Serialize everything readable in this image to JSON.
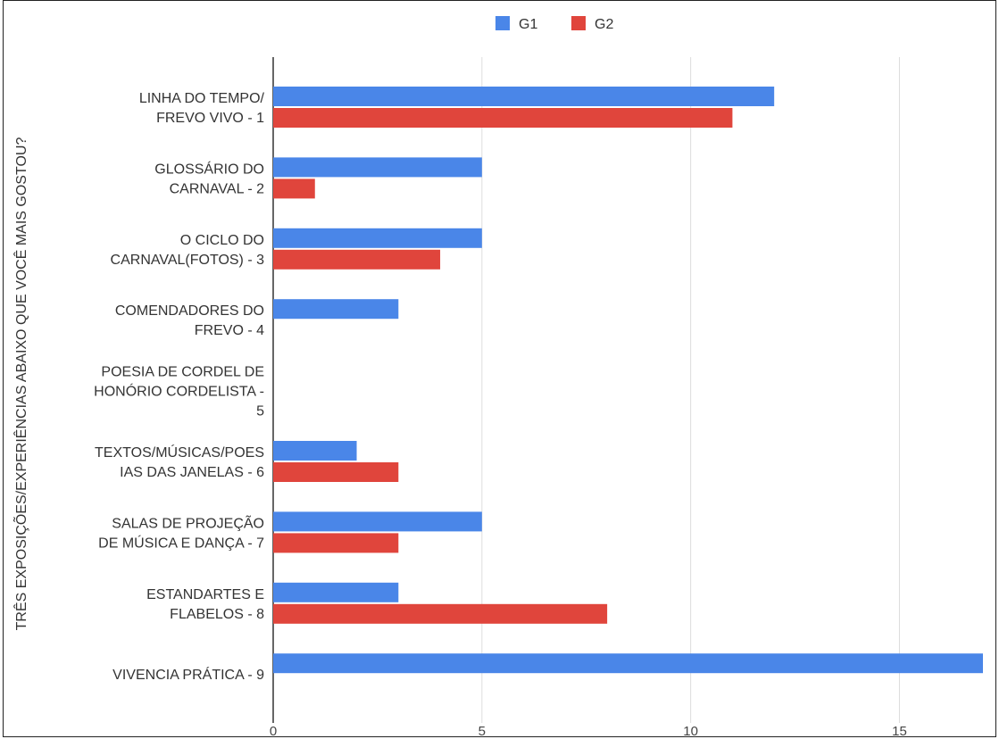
{
  "chart_data": {
    "type": "bar",
    "orientation": "horizontal",
    "ylabel": "TRÊS EXPOSIÇÕES/EXPERIÊNCIAS ABAIXO QUE VOCÊ MAIS GOSTOU?",
    "xlabel": "",
    "legend_position": "top",
    "grid": true,
    "xlim": [
      0,
      17
    ],
    "xticks": [
      0,
      5,
      10,
      15
    ],
    "categories": [
      [
        "LINHA DO TEMPO/",
        "FREVO VIVO - 1"
      ],
      [
        "GLOSSÁRIO DO",
        "CARNAVAL - 2"
      ],
      [
        "O CICLO DO",
        "CARNAVAL(FOTOS) - 3"
      ],
      [
        "COMENDADORES DO",
        "FREVO - 4"
      ],
      [
        "POESIA DE CORDEL DE",
        "HONÓRIO CORDELISTA -",
        "5"
      ],
      [
        "TEXTOS/MÚSICAS/POES",
        "IAS DAS JANELAS - 6"
      ],
      [
        "SALAS DE PROJEÇÃO",
        "DE MÚSICA E DANÇA - 7"
      ],
      [
        "ESTANDARTES E",
        "FLABELOS - 8"
      ],
      [
        "VIVENCIA PRÁTICA - 9"
      ]
    ],
    "series": [
      {
        "name": "G1",
        "color": "#4a86e8",
        "values": [
          12,
          5,
          5,
          3,
          0,
          2,
          5,
          3,
          17
        ]
      },
      {
        "name": "G2",
        "color": "#e0453c",
        "values": [
          11,
          1,
          4,
          0,
          0,
          3,
          3,
          8,
          0
        ]
      }
    ]
  }
}
